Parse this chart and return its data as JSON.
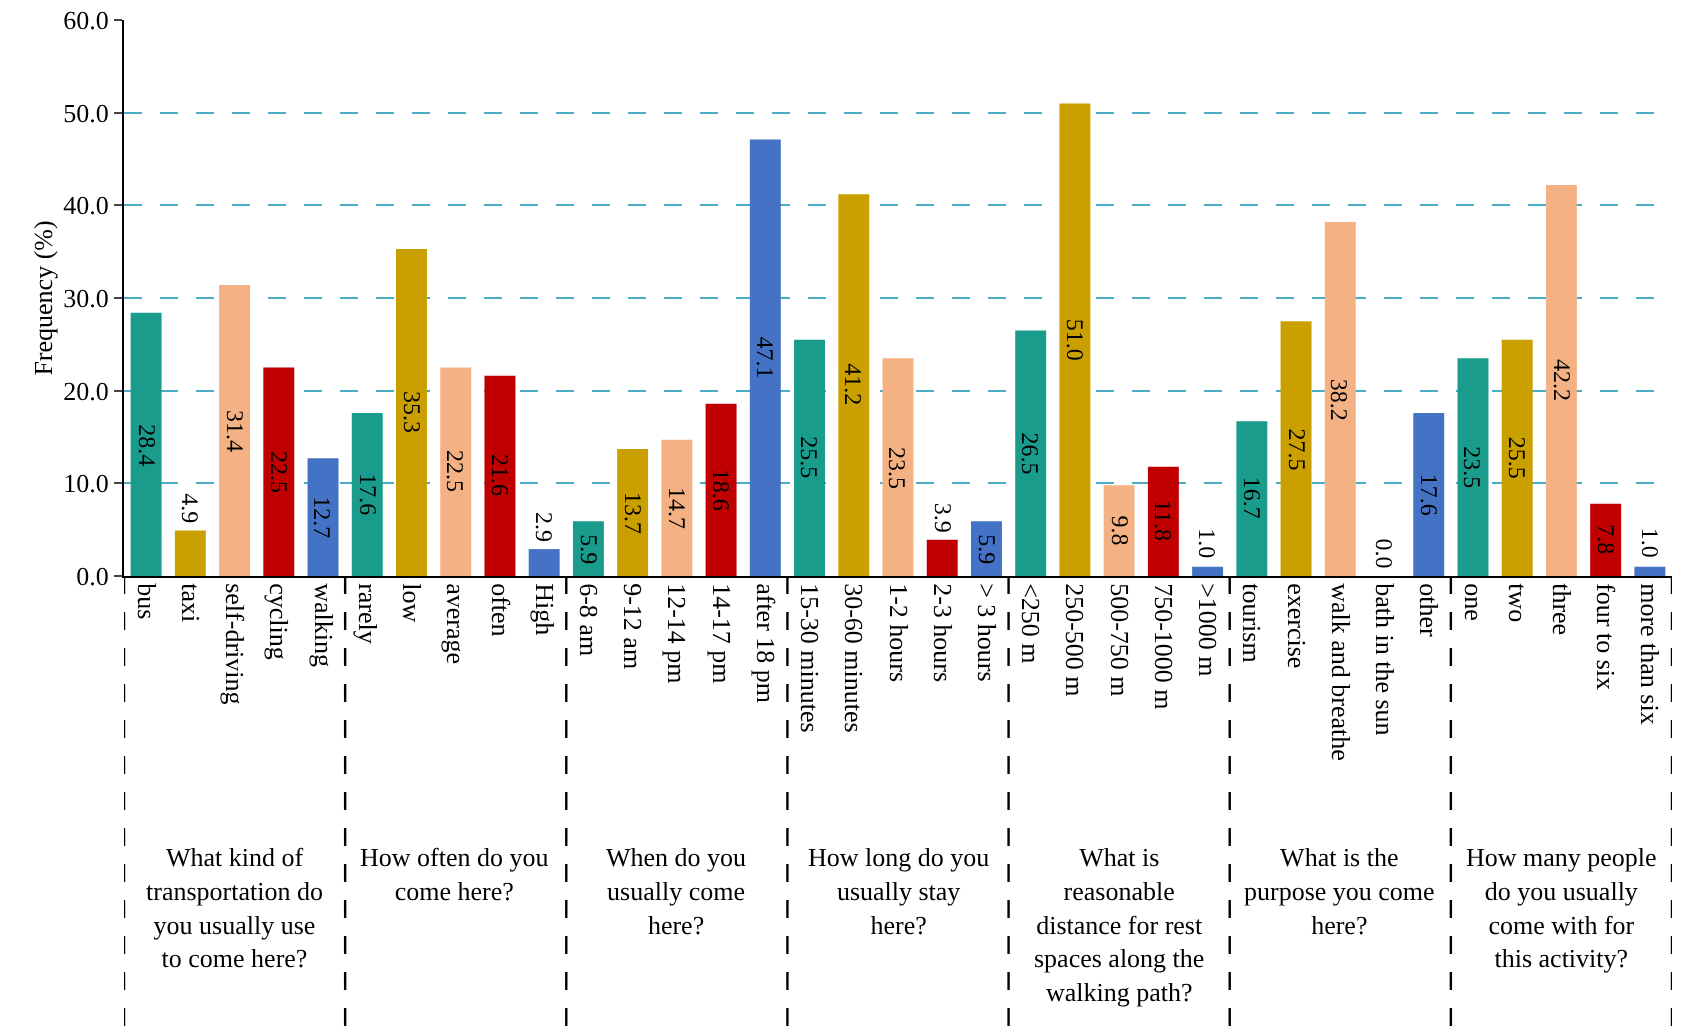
{
  "chart_data": {
    "type": "bar",
    "ylabel": "Frequency (%)",
    "categories": [
      "bus",
      "taxi",
      "self-driving",
      "cycling",
      "walking",
      "rarely",
      "low",
      "average",
      "often",
      "High",
      "6-8 am",
      "9-12 am",
      "12-14 pm",
      "14-17 pm",
      "after 18 pm",
      "15-30 minutes",
      "30-60 minutes",
      "1-2 hours",
      "2-3 hours",
      "> 3 hours",
      "<250 m",
      "250-500 m",
      "500-750 m",
      "750-1000 m",
      ">1000 m",
      "tourism",
      "exercise",
      "walk and breathe",
      "bath in the sun",
      "other",
      "one",
      "two",
      "three",
      "four to six",
      "more than six"
    ],
    "values": [
      28.4,
      4.9,
      31.4,
      22.5,
      12.7,
      17.6,
      35.3,
      22.5,
      21.6,
      2.9,
      5.9,
      13.7,
      14.7,
      18.6,
      47.1,
      25.5,
      41.2,
      23.5,
      3.9,
      5.9,
      26.5,
      51.0,
      9.8,
      11.8,
      1.0,
      16.7,
      27.5,
      38.2,
      0.0,
      17.6,
      23.5,
      25.5,
      42.2,
      7.8,
      1.0
    ],
    "colors": [
      "#1a9c8c",
      "#c9a000",
      "#f4b183",
      "#c00000",
      "#4472c4",
      "#1a9c8c",
      "#c9a000",
      "#f4b183",
      "#c00000",
      "#4472c4",
      "#1a9c8c",
      "#c9a000",
      "#f4b183",
      "#c00000",
      "#4472c4",
      "#1a9c8c",
      "#c9a000",
      "#f4b183",
      "#c00000",
      "#4472c4",
      "#1a9c8c",
      "#c9a000",
      "#f4b183",
      "#c00000",
      "#4472c4",
      "#1a9c8c",
      "#c9a000",
      "#f4b183",
      "#c00000",
      "#4472c4",
      "#1a9c8c",
      "#c9a000",
      "#f4b183",
      "#c00000",
      "#4472c4"
    ],
    "value_labels": [
      "28.4",
      "4.9",
      "31.4",
      "22.5",
      "12.7",
      "17.6",
      "35.3",
      "22.5",
      "21.6",
      "2.9",
      "5.9",
      "13.7",
      "14.7",
      "18.6",
      "47.1",
      "25.5",
      "41.2",
      "23.5",
      "3.9",
      "5.9",
      "26.5",
      "51.0",
      "9.8",
      "11.8",
      "1.0",
      "16.7",
      "27.5",
      "38.2",
      "0.0",
      "17.6",
      "23.5",
      "25.5",
      "42.2",
      "7.8",
      "1.0"
    ],
    "ylim": [
      0,
      60
    ],
    "yticks": [
      {
        "value": 0,
        "label": "0.0"
      },
      {
        "value": 10,
        "label": "10.0"
      },
      {
        "value": 20,
        "label": "20.0"
      },
      {
        "value": 30,
        "label": "30.0"
      },
      {
        "value": 40,
        "label": "40.0"
      },
      {
        "value": 50,
        "label": "50.0"
      },
      {
        "value": 60,
        "label": "60.0"
      }
    ],
    "grid": "y",
    "annotations": [
      "What kind of transportation do you usually use to come here?",
      "How often do you come here?",
      "When do you usually come here?",
      "How long do you usually stay here?",
      "What is reasonable distance for rest spaces along the walking path?",
      "What is the purpose you come here?",
      "How many people do you usually come with for this activity?"
    ]
  }
}
